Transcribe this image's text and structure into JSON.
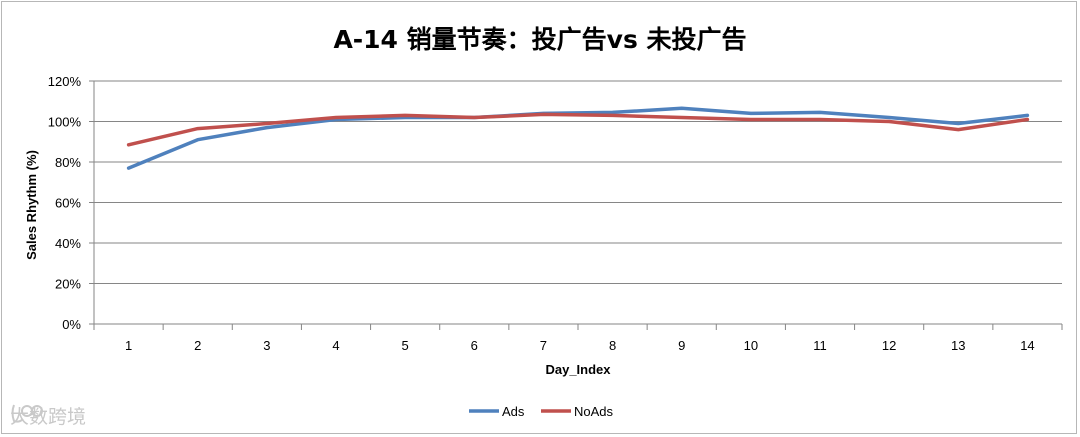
{
  "chart_data": {
    "type": "line",
    "title": "A-14 销量节奏：投广告vs 未投广告",
    "xlabel": "Day_Index",
    "ylabel": "Sales Rhythm (%)",
    "x": [
      1,
      2,
      3,
      4,
      5,
      6,
      7,
      8,
      9,
      10,
      11,
      12,
      13,
      14
    ],
    "ylim": [
      0,
      120
    ],
    "yticks": [
      "0%",
      "20%",
      "40%",
      "60%",
      "80%",
      "100%",
      "120%"
    ],
    "grid": true,
    "legend_position": "bottom",
    "series": [
      {
        "name": "Ads",
        "color": "#4f81bd",
        "values": [
          77,
          91,
          97,
          101,
          102,
          102,
          104,
          104.5,
          106.5,
          104,
          104.5,
          102,
          99,
          103
        ]
      },
      {
        "name": "NoAds",
        "color": "#c0504d",
        "values": [
          88.5,
          96.5,
          99,
          102,
          103,
          102,
          103.5,
          103,
          102,
          101,
          101,
          100,
          96,
          101
        ]
      }
    ]
  },
  "watermark": {
    "text": "大数跨境",
    "icon": "brand-logo-icon"
  }
}
